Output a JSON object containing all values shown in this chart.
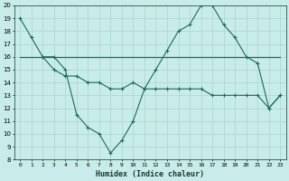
{
  "bg_color": "#c8ece9",
  "line_color": "#1a6b5a",
  "grid_color": "#b0d8d4",
  "xlabel": "Humidex (Indice chaleur)",
  "xlim": [
    -0.5,
    23.5
  ],
  "ylim": [
    8,
    20
  ],
  "yticks": [
    8,
    9,
    10,
    11,
    12,
    13,
    14,
    15,
    16,
    17,
    18,
    19,
    20
  ],
  "xticks": [
    0,
    1,
    2,
    3,
    4,
    5,
    6,
    7,
    8,
    9,
    10,
    11,
    12,
    13,
    14,
    15,
    16,
    17,
    18,
    19,
    20,
    21,
    22,
    23
  ],
  "line1_x": [
    0,
    1,
    2,
    3,
    4,
    5,
    6,
    7,
    8,
    9,
    10,
    11,
    12,
    13,
    14,
    15,
    16,
    17,
    18,
    19,
    20,
    21,
    22,
    23
  ],
  "line1_y": [
    19,
    17.5,
    16,
    16,
    15,
    11.5,
    10.5,
    10,
    8.5,
    9.5,
    11,
    13.5,
    15,
    16.5,
    18,
    18.5,
    20,
    20,
    18.5,
    17.5,
    16,
    15.5,
    12,
    13
  ],
  "line2_x": [
    0,
    1,
    2,
    3,
    4,
    5,
    6,
    7,
    8,
    9,
    10,
    11,
    12,
    13,
    14,
    15,
    16,
    17,
    18,
    19,
    20,
    21,
    22,
    23
  ],
  "line2_y": [
    16,
    16,
    16,
    16,
    16,
    16,
    16,
    16,
    16,
    16,
    16,
    16,
    16,
    16,
    16,
    16,
    16,
    16,
    16,
    16,
    16,
    16,
    16,
    16
  ],
  "line3_x": [
    2,
    3,
    4,
    5,
    6,
    7,
    8,
    9,
    10,
    11,
    12,
    13,
    14,
    15,
    16,
    17,
    18,
    19,
    20,
    21,
    22,
    23
  ],
  "line3_y": [
    16,
    15,
    14.5,
    14.5,
    14,
    14,
    13.5,
    13.5,
    14,
    13.5,
    13.5,
    13.5,
    13.5,
    13.5,
    13.5,
    13,
    13,
    13,
    13,
    13,
    12,
    13
  ]
}
